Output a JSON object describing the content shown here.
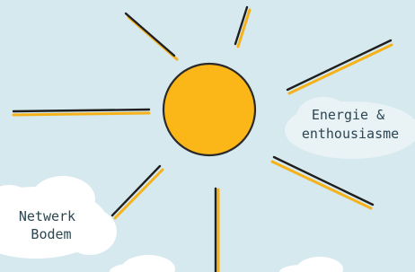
{
  "labels": [
    {
      "lines": [
        "Energie &",
        "enthousiasme"
      ]
    },
    {
      "lines": [
        "Netwerk",
        "Bodem"
      ]
    }
  ]
}
